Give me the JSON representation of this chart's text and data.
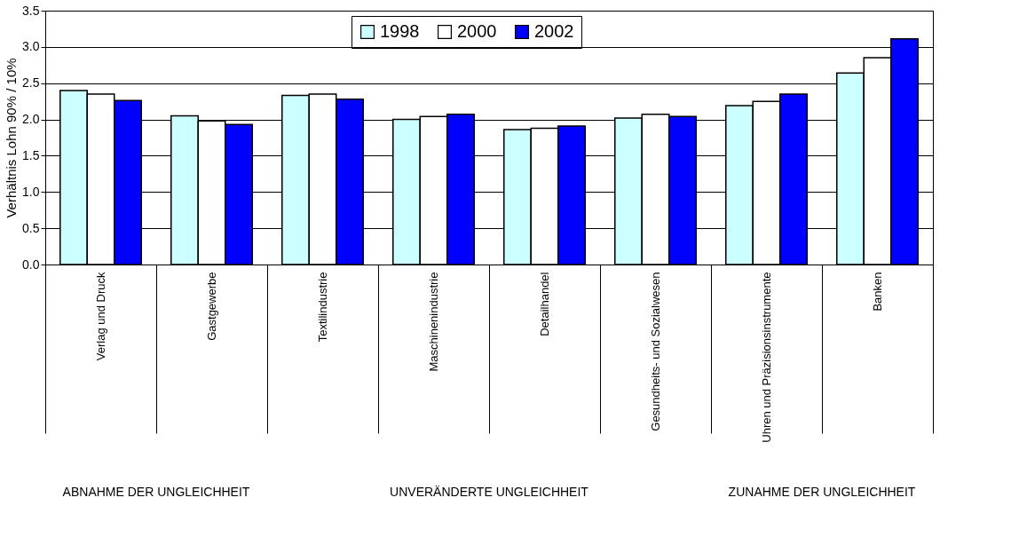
{
  "chart_data": {
    "type": "bar",
    "ylabel": "Verhältnis Lohn 90% / 10%",
    "categories": [
      "Verlag und Druck",
      "Gastgewerbe",
      "Textilindustrie",
      "Maschinenindustrie",
      "Detailhandel",
      "Gesundheits- und Sozialwesen",
      "Uhren und Präzisionsinstrumente",
      "Banken"
    ],
    "series": [
      {
        "name": "1998",
        "color": "#ccffff",
        "values": [
          2.4,
          2.05,
          2.33,
          2.0,
          1.86,
          2.02,
          2.19,
          2.64
        ]
      },
      {
        "name": "2000",
        "color": "#ffffff",
        "values": [
          2.35,
          1.98,
          2.35,
          2.04,
          1.88,
          2.07,
          2.25,
          2.85
        ]
      },
      {
        "name": "2002",
        "color": "#0000ff",
        "values": [
          2.26,
          1.93,
          2.28,
          2.07,
          1.91,
          2.04,
          2.35,
          3.11
        ]
      }
    ],
    "ylim": [
      0,
      3.5
    ],
    "yticks": [
      {
        "value": 0,
        "label": "0.0"
      },
      0.5,
      {
        "value": 1,
        "label": "1.0"
      },
      1.5,
      {
        "value": 2,
        "label": "2.0"
      },
      2.5,
      {
        "value": 3,
        "label": "3.0"
      },
      3.5
    ],
    "grid": "y",
    "legend": "top",
    "annotations": [
      "ABNAHME DER UNGLEICHHEIT",
      "UNVERÄNDERTE UNGLEICHHEIT",
      "ZUNAHME DER UNGLEICHHEIT"
    ]
  }
}
